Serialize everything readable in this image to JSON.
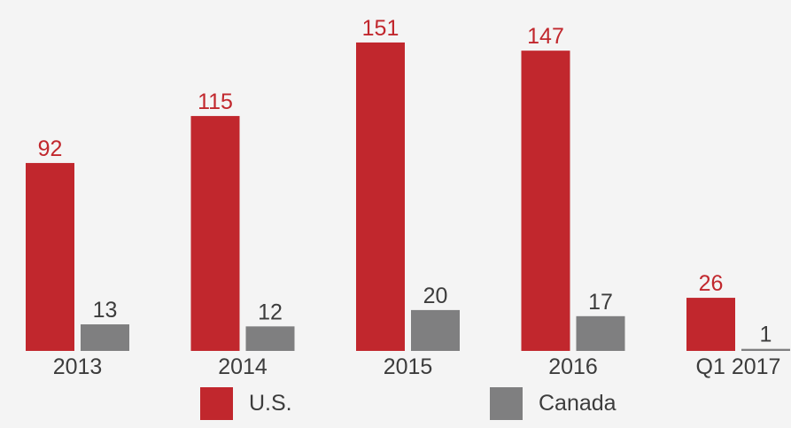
{
  "chart_data": {
    "type": "bar",
    "categories": [
      "2013",
      "2014",
      "2015",
      "2016",
      "Q1 2017"
    ],
    "series": [
      {
        "name": "U.S.",
        "values": [
          92,
          115,
          151,
          147,
          26
        ],
        "color": "#c1272d",
        "label_color": "#c1272d"
      },
      {
        "name": "Canada",
        "values": [
          13,
          12,
          20,
          17,
          1
        ],
        "color": "#7f7f80",
        "label_color": "#3c3c3c"
      }
    ],
    "title": "",
    "xlabel": "",
    "ylabel": "",
    "ylim": [
      0,
      160
    ],
    "grid": false,
    "legend": "bottom"
  }
}
